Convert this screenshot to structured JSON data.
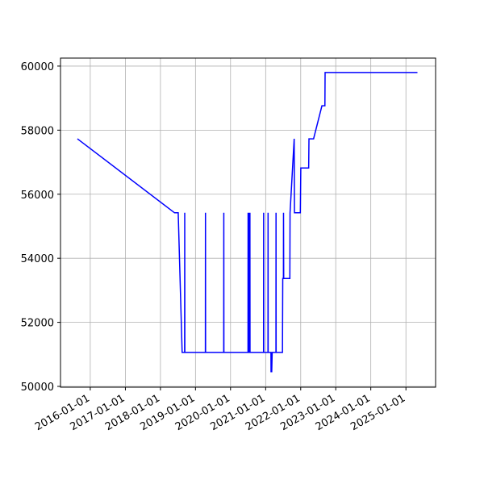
{
  "chart_data": {
    "type": "line",
    "color": "#0000ff",
    "grid": true,
    "x": [
      "2015-08-20",
      "2018-05-28",
      "2018-07-05",
      "2018-08-15",
      "2018-09-10",
      "2018-09-11",
      "2018-09-12",
      "2019-04-14",
      "2019-04-15",
      "2019-04-16",
      "2019-10-22",
      "2019-10-23",
      "2019-10-24",
      "2020-07-01",
      "2020-07-02",
      "2020-07-03",
      "2020-07-12",
      "2020-07-13",
      "2020-07-14",
      "2020-07-20",
      "2020-07-21",
      "2020-07-22",
      "2020-12-10",
      "2020-12-11",
      "2020-12-12",
      "2021-01-25",
      "2021-01-26",
      "2021-01-27",
      "2021-02-25",
      "2021-02-26",
      "2021-03-05",
      "2021-03-10",
      "2021-04-18",
      "2021-04-19",
      "2021-04-20",
      "2021-06-25",
      "2021-06-28",
      "2021-07-05",
      "2021-07-06",
      "2021-07-08",
      "2021-09-10",
      "2021-09-12",
      "2021-10-25",
      "2021-10-28",
      "2021-12-28",
      "2022-01-02",
      "2022-03-25",
      "2022-03-28",
      "2022-05-15",
      "2022-08-10",
      "2022-09-10",
      "2022-09-12",
      "2025-05-01"
    ],
    "values": [
      57730,
      55420,
      55420,
      51060,
      51060,
      55420,
      51060,
      51060,
      55420,
      51060,
      51060,
      55420,
      51060,
      51060,
      55420,
      51060,
      51060,
      55420,
      51060,
      51060,
      55420,
      51060,
      51060,
      55420,
      51060,
      51060,
      55420,
      51060,
      51060,
      50460,
      50460,
      51060,
      51060,
      55420,
      51060,
      51060,
      53370,
      53370,
      55420,
      53370,
      53370,
      55420,
      57730,
      55420,
      55420,
      56820,
      56820,
      57730,
      57730,
      58760,
      58760,
      59800,
      59800
    ],
    "xlim": [
      "2015-02-25",
      "2025-11-06"
    ],
    "xticks": [
      "2016-01-01",
      "2017-01-01",
      "2018-01-01",
      "2019-01-01",
      "2020-01-01",
      "2021-01-01",
      "2022-01-01",
      "2023-01-01",
      "2024-01-01",
      "2025-01-01"
    ],
    "ylim": [
      49975,
      60250
    ],
    "yticks": [
      50000,
      52000,
      54000,
      56000,
      58000,
      60000
    ]
  }
}
